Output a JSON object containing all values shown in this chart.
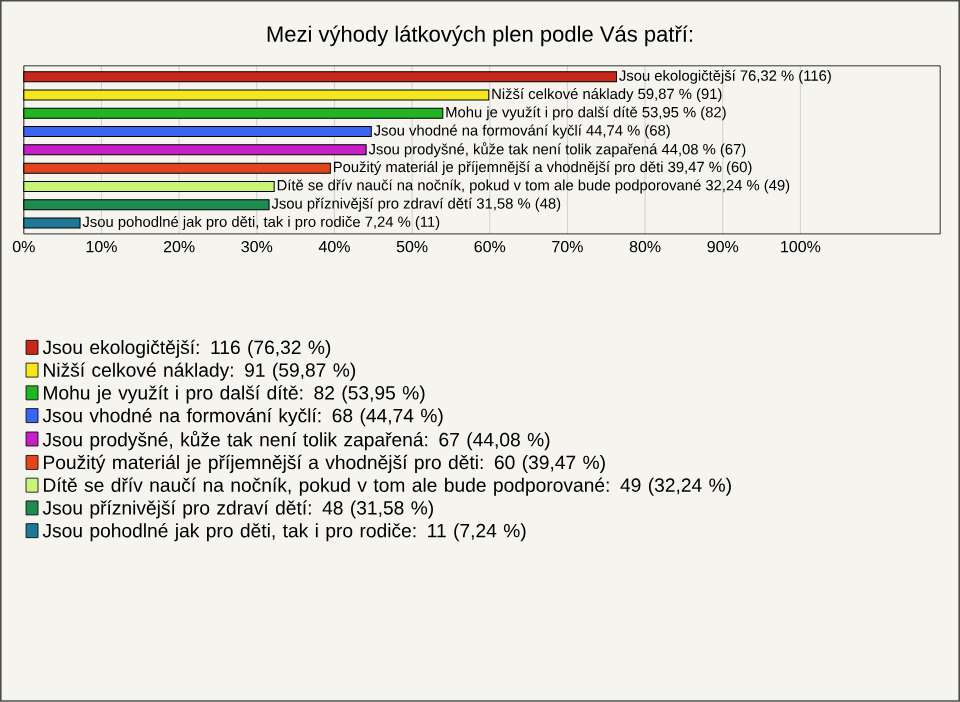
{
  "chart_data": {
    "type": "bar",
    "orientation": "horizontal",
    "title": "Mezi výhody látkových plen podle Vás patří:",
    "categories": [
      null,
      null,
      null,
      null,
      null,
      null,
      null,
      null,
      null
    ],
    "series": [
      {
        "name": "Jsou ekologičtější: 116 (76,32 %)",
        "color": "#c8281c",
        "values": [
          76.32,
          null,
          null,
          null,
          null,
          null,
          null,
          null,
          null
        ],
        "value_labels": [
          "Jsou ekologičtější 76,32 % (116)",
          null,
          null,
          null,
          null,
          null,
          null,
          null,
          null
        ]
      },
      {
        "name": "Nižší celkové náklady: 91 (59,87 %)",
        "color": "#f5e61e",
        "values": [
          null,
          59.87,
          null,
          null,
          null,
          null,
          null,
          null,
          null
        ],
        "value_labels": [
          null,
          "Nižší celkové náklady 59,87 % (91)",
          null,
          null,
          null,
          null,
          null,
          null,
          null
        ]
      },
      {
        "name": "Mohu je využít i pro další dítě: 82 (53,95 %)",
        "color": "#22b422",
        "values": [
          null,
          null,
          53.95,
          null,
          null,
          null,
          null,
          null,
          null
        ],
        "value_labels": [
          null,
          null,
          "Mohu je využít i pro další dítě 53,95 % (82)",
          null,
          null,
          null,
          null,
          null,
          null
        ]
      },
      {
        "name": "Jsou vhodné na formování kyčlí: 68 (44,74 %)",
        "color": "#3c64f0",
        "values": [
          null,
          null,
          null,
          44.74,
          null,
          null,
          null,
          null,
          null
        ],
        "value_labels": [
          null,
          null,
          null,
          "Jsou vhodné na formování kyčlí 44,74 % (68)",
          null,
          null,
          null,
          null,
          null
        ]
      },
      {
        "name": "Jsou prodyšné, kůže tak není tolik zapařená: 67 (44,08 %)",
        "color": "#c81ec8",
        "values": [
          null,
          null,
          null,
          null,
          44.08,
          null,
          null,
          null,
          null
        ],
        "value_labels": [
          null,
          null,
          null,
          null,
          "Jsou prodyšné, kůže tak není tolik zapařená 44,08 % (67)",
          null,
          null,
          null,
          null
        ]
      },
      {
        "name": "Použitý materiál je příjemnější a vhodnější pro děti: 60 (39,47 %)",
        "color": "#e0461e",
        "values": [
          null,
          null,
          null,
          null,
          null,
          39.47,
          null,
          null,
          null
        ],
        "value_labels": [
          null,
          null,
          null,
          null,
          null,
          "Použitý materiál je příjemnější a vhodnější pro děti 39,47 % (60)",
          null,
          null,
          null
        ]
      },
      {
        "name": "Dítě se dřív naučí na nočník, pokud v tom ale bude podporované: 49 (32,24 %)",
        "color": "#c8f578",
        "values": [
          null,
          null,
          null,
          null,
          null,
          null,
          32.24,
          null,
          null
        ],
        "value_labels": [
          null,
          null,
          null,
          null,
          null,
          null,
          "Dítě se dřív naučí na nočník, pokud v tom ale bude podporované 32,24 % (49)",
          null,
          null
        ]
      },
      {
        "name": "Jsou příznivější pro zdraví dětí: 48 (31,58 %)",
        "color": "#1e8c50",
        "values": [
          null,
          null,
          null,
          null,
          null,
          null,
          null,
          31.58,
          null
        ],
        "value_labels": [
          null,
          null,
          null,
          null,
          null,
          null,
          null,
          "Jsou příznivější pro zdraví dětí 31,58 % (48)",
          null
        ]
      },
      {
        "name": "Jsou pohodlné jak pro děti, tak i pro rodiče: 11 (7,24 %)",
        "color": "#1e7896",
        "values": [
          null,
          null,
          null,
          null,
          null,
          null,
          null,
          null,
          7.24
        ],
        "value_labels": [
          null,
          null,
          null,
          null,
          null,
          null,
          null,
          null,
          "Jsou pohodlné jak pro děti, tak i pro rodiče 7,24 % (11)"
        ]
      }
    ],
    "xlim": [
      0,
      118
    ],
    "xticks": [
      {
        "value": 0,
        "label": "0%"
      },
      {
        "value": 10,
        "label": "10%"
      },
      {
        "value": 20,
        "label": "20%"
      },
      {
        "value": 30,
        "label": "30%"
      },
      {
        "value": 40,
        "label": "40%"
      },
      {
        "value": 50,
        "label": "50%"
      },
      {
        "value": 60,
        "label": "60%"
      },
      {
        "value": 70,
        "label": "70%"
      },
      {
        "value": 80,
        "label": "80%"
      },
      {
        "value": 90,
        "label": "90%"
      },
      {
        "value": 100,
        "label": "100%"
      }
    ],
    "grid": "x",
    "legend": "bottom",
    "tick_labels": "x"
  }
}
